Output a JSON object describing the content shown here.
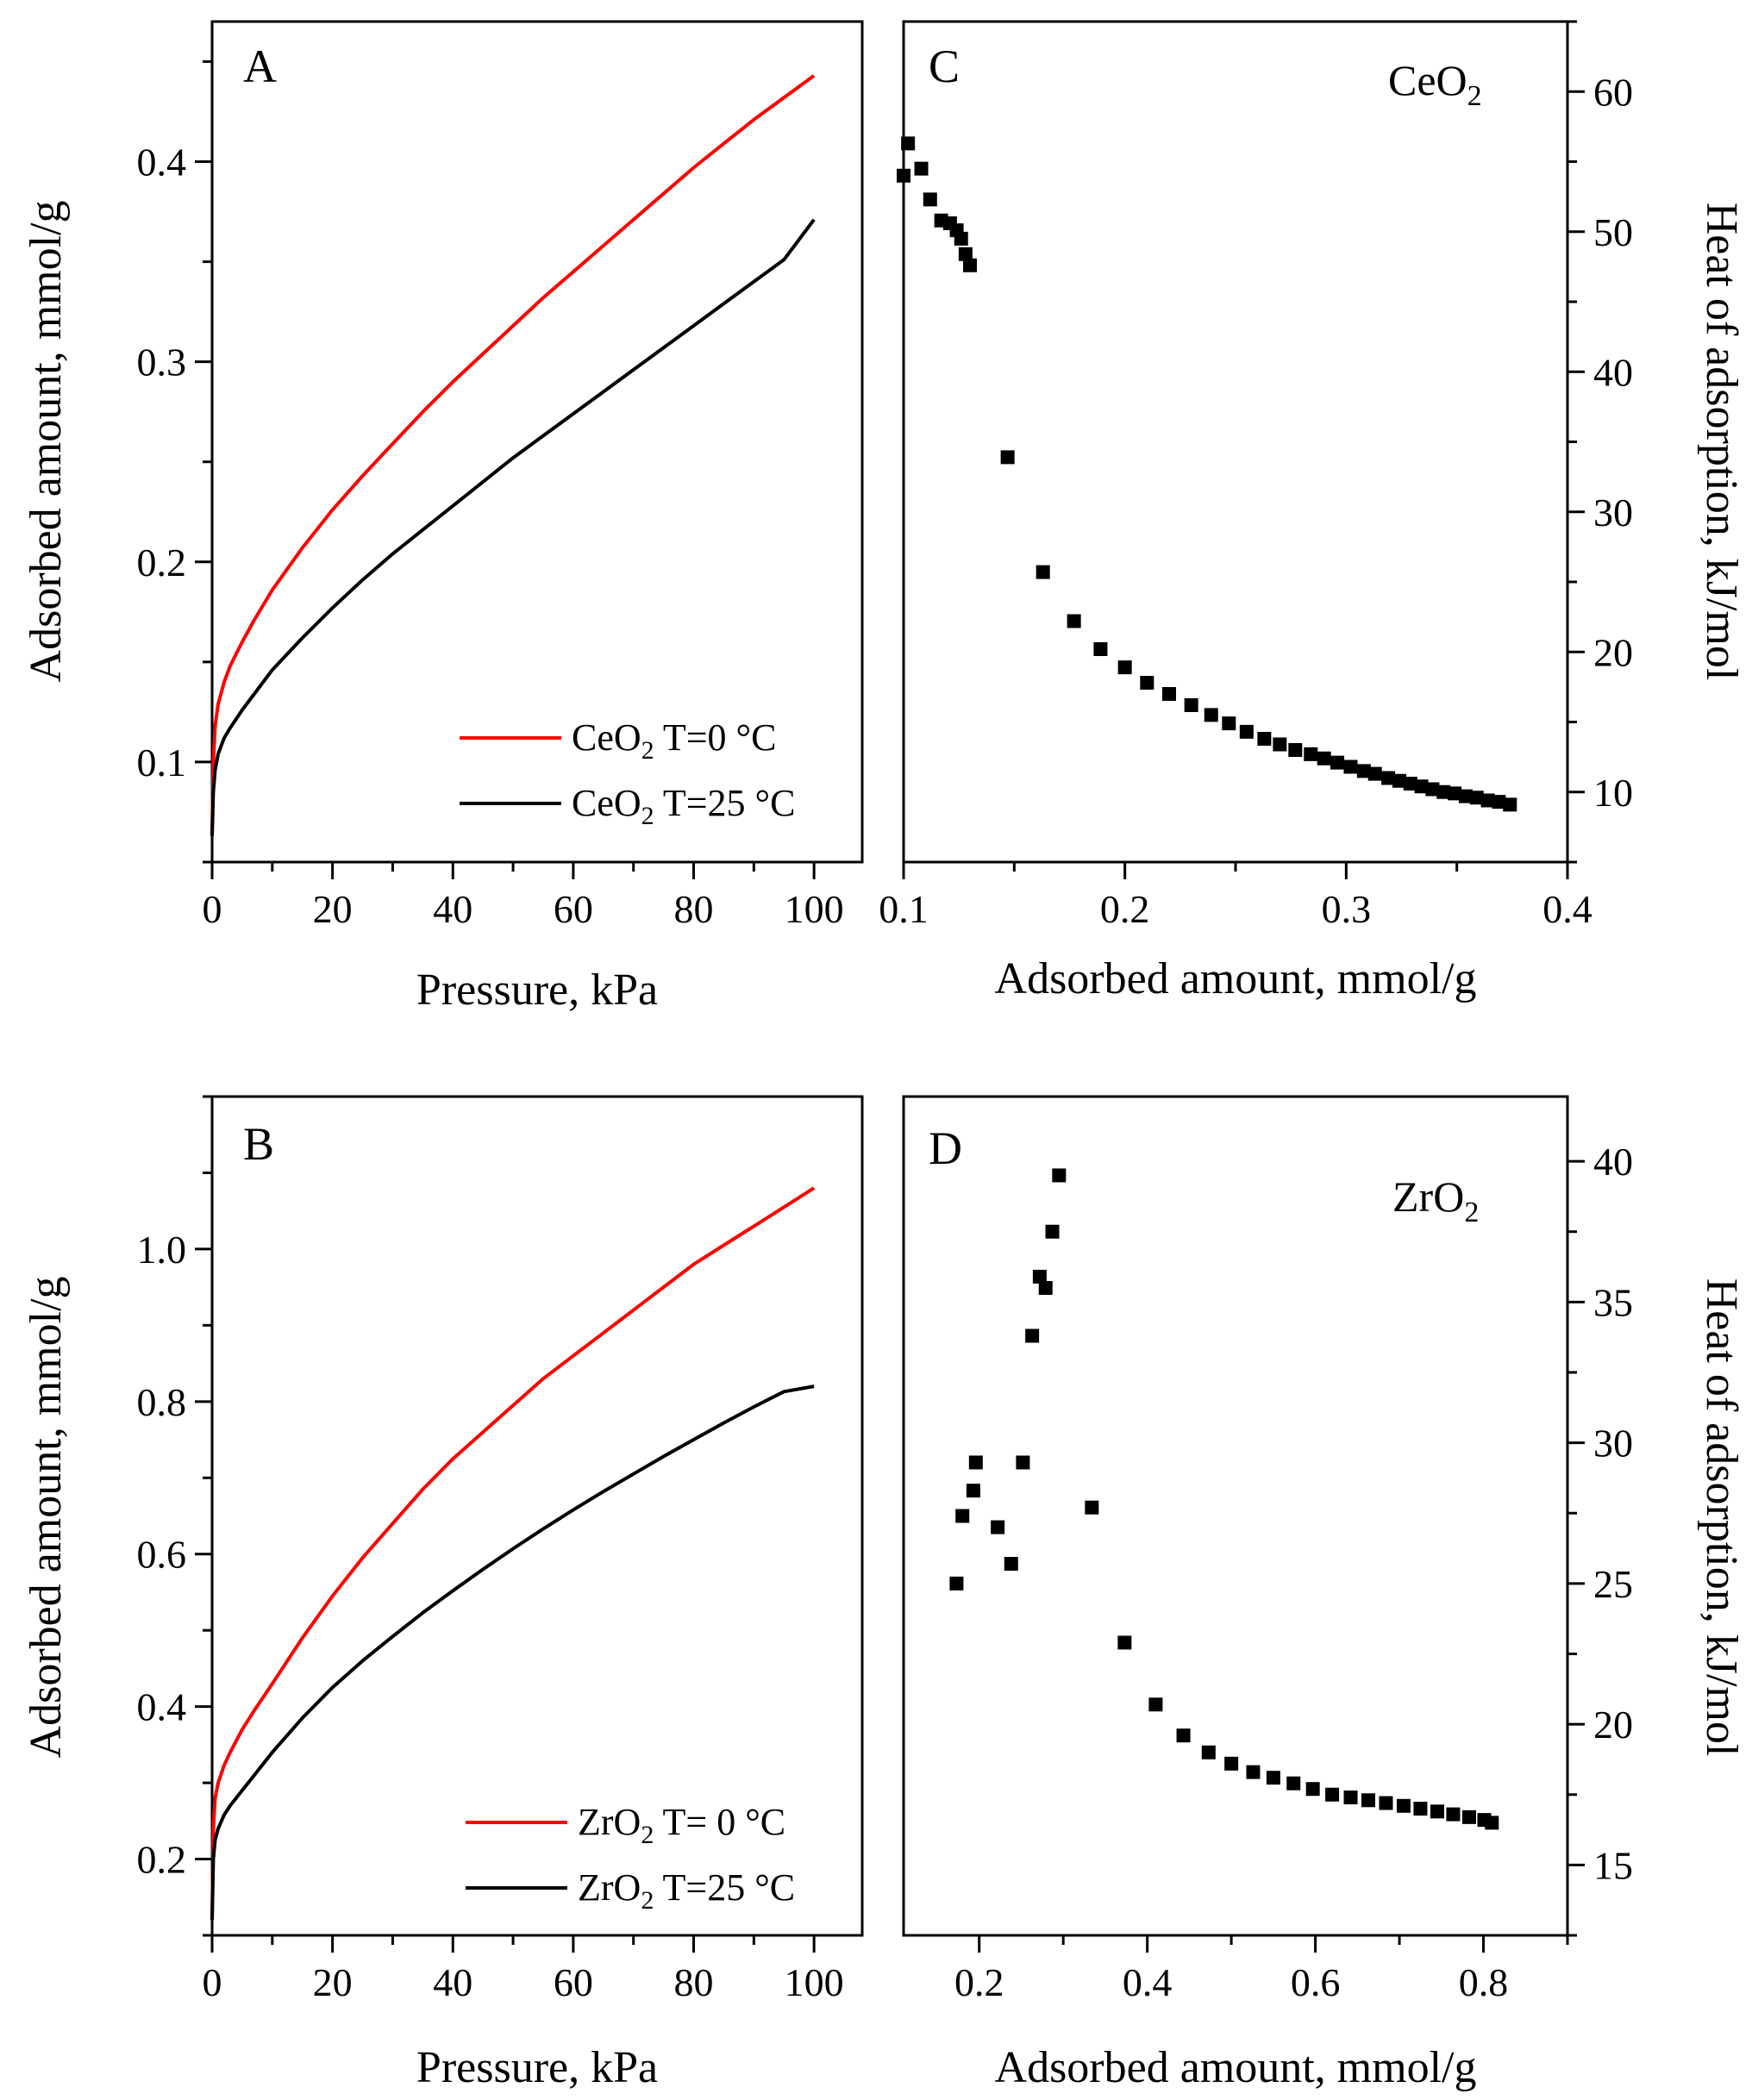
{
  "chart_data": [
    {
      "id": "A",
      "type": "line",
      "panel_label": "A",
      "xlabel": "Pressure, kPa",
      "ylabel": "Adsorbed amount, mmol/g",
      "xlim": [
        0,
        108
      ],
      "ylim": [
        0.05,
        0.47
      ],
      "x_ticks": [
        0,
        20,
        40,
        60,
        80,
        100
      ],
      "y_ticks": [
        0.1,
        0.2,
        0.3,
        0.4
      ],
      "x_tick_labels": [
        "0",
        "20",
        "40",
        "60",
        "80",
        "100"
      ],
      "y_tick_labels": [
        "0.1",
        "0.2",
        "0.3",
        "0.4"
      ],
      "legend_position": "bottom-right",
      "series": [
        {
          "name": "CeO2 T=0 °C",
          "legend_main": "CeO",
          "legend_sub": "2",
          "legend_rest": " T=0 °C",
          "color": "#ff0000",
          "x": [
            0,
            0.2,
            0.5,
            1,
            2,
            3,
            5,
            7,
            10,
            15,
            20,
            25,
            30,
            35,
            40,
            45,
            50,
            55,
            60,
            65,
            70,
            75,
            80,
            85,
            90,
            95,
            100
          ],
          "y": [
            0.065,
            0.1,
            0.118,
            0.129,
            0.14,
            0.148,
            0.16,
            0.171,
            0.186,
            0.207,
            0.226,
            0.243,
            0.259,
            0.275,
            0.29,
            0.304,
            0.318,
            0.332,
            0.345,
            0.358,
            0.371,
            0.384,
            0.397,
            0.409,
            0.421,
            0.432,
            0.443
          ]
        },
        {
          "name": "CeO2 T=25 °C",
          "legend_main": "CeO",
          "legend_sub": "2",
          "legend_rest": " T=25 °C",
          "color": "#000000",
          "x": [
            0,
            0.2,
            0.5,
            1,
            2,
            3,
            5,
            7,
            10,
            15,
            20,
            25,
            30,
            35,
            40,
            45,
            50,
            55,
            60,
            65,
            70,
            75,
            80,
            85,
            90,
            95,
            100
          ],
          "y": [
            0.063,
            0.085,
            0.096,
            0.104,
            0.112,
            0.117,
            0.126,
            0.134,
            0.146,
            0.162,
            0.177,
            0.191,
            0.204,
            0.216,
            0.228,
            0.24,
            0.252,
            0.263,
            0.274,
            0.285,
            0.296,
            0.307,
            0.318,
            0.329,
            0.34,
            0.351,
            0.371
          ]
        }
      ]
    },
    {
      "id": "B",
      "type": "line",
      "panel_label": "B",
      "xlabel": "Pressure, kPa",
      "ylabel": "Adsorbed amount, mmol/g",
      "xlim": [
        0,
        108
      ],
      "ylim": [
        0.1,
        1.2
      ],
      "x_ticks": [
        0,
        20,
        40,
        60,
        80,
        100
      ],
      "y_ticks": [
        0.2,
        0.4,
        0.6,
        0.8,
        1.0
      ],
      "x_tick_labels": [
        "0",
        "20",
        "40",
        "60",
        "80",
        "100"
      ],
      "y_tick_labels": [
        "0.2",
        "0.4",
        "0.6",
        "0.8",
        "1.0"
      ],
      "legend_position": "bottom-right",
      "series": [
        {
          "name": "ZrO2 T= 0 °C",
          "legend_main": "ZrO",
          "legend_sub": "2",
          "legend_rest": " T= 0 °C",
          "color": "#ff0000",
          "x": [
            0,
            0.2,
            0.5,
            1,
            2,
            3,
            5,
            7,
            10,
            15,
            20,
            25,
            30,
            35,
            40,
            45,
            50,
            55,
            60,
            65,
            70,
            75,
            80,
            85,
            90,
            95,
            100
          ],
          "y": [
            0.12,
            0.24,
            0.28,
            0.3,
            0.323,
            0.34,
            0.37,
            0.395,
            0.43,
            0.49,
            0.545,
            0.595,
            0.64,
            0.685,
            0.725,
            0.76,
            0.795,
            0.83,
            0.86,
            0.89,
            0.92,
            0.95,
            0.98,
            1.005,
            1.03,
            1.055,
            1.08
          ]
        },
        {
          "name": "ZrO2 T=25 °C",
          "legend_main": "ZrO",
          "legend_sub": "2",
          "legend_rest": " T=25 °C",
          "color": "#000000",
          "x": [
            0,
            0.2,
            0.5,
            1,
            2,
            3,
            5,
            7,
            10,
            15,
            20,
            25,
            30,
            35,
            40,
            45,
            50,
            55,
            60,
            65,
            70,
            75,
            80,
            85,
            90,
            95,
            100
          ],
          "y": [
            0.12,
            0.2,
            0.225,
            0.24,
            0.258,
            0.27,
            0.29,
            0.31,
            0.34,
            0.385,
            0.425,
            0.46,
            0.492,
            0.523,
            0.552,
            0.58,
            0.607,
            0.633,
            0.658,
            0.682,
            0.705,
            0.728,
            0.75,
            0.772,
            0.793,
            0.813,
            0.82
          ]
        }
      ]
    },
    {
      "id": "C",
      "type": "scatter",
      "panel_label": "C",
      "compound_main": "CeO",
      "compound_sub": "2",
      "xlabel": "Adsorbed amount, mmol/g",
      "ylabel": "Heat of adsorption, kJ/mol",
      "y_axis_side": "right",
      "xlim": [
        0.1,
        0.4
      ],
      "ylim": [
        5,
        65
      ],
      "x_ticks": [
        0.1,
        0.2,
        0.3,
        0.4
      ],
      "y_ticks": [
        10,
        20,
        30,
        40,
        50,
        60
      ],
      "x_tick_labels": [
        "0.1",
        "0.2",
        "0.3",
        "0.4"
      ],
      "y_tick_labels": [
        "10",
        "20",
        "30",
        "40",
        "50",
        "60"
      ],
      "series": [
        {
          "name": "CeO2",
          "color": "#000000",
          "x": [
            0.1,
            0.102,
            0.108,
            0.112,
            0.117,
            0.121,
            0.124,
            0.126,
            0.128,
            0.13,
            0.147,
            0.163,
            0.177,
            0.189,
            0.2,
            0.21,
            0.22,
            0.23,
            0.239,
            0.247,
            0.255,
            0.263,
            0.27,
            0.277,
            0.284,
            0.29,
            0.296,
            0.302,
            0.308,
            0.313,
            0.319,
            0.324,
            0.329,
            0.334,
            0.339,
            0.344,
            0.349,
            0.354,
            0.359,
            0.364,
            0.369,
            0.374
          ],
          "y": [
            54,
            56.3,
            54.5,
            52.3,
            50.8,
            50.6,
            50.1,
            49.5,
            48.4,
            47.6,
            33.9,
            25.7,
            22.2,
            20.2,
            18.9,
            17.8,
            17.0,
            16.2,
            15.5,
            14.9,
            14.3,
            13.8,
            13.4,
            13.0,
            12.7,
            12.4,
            12.1,
            11.8,
            11.5,
            11.3,
            11.0,
            10.8,
            10.6,
            10.4,
            10.2,
            10.0,
            9.9,
            9.7,
            9.6,
            9.4,
            9.3,
            9.1
          ]
        }
      ]
    },
    {
      "id": "D",
      "type": "scatter",
      "panel_label": "D",
      "compound_main": "ZrO",
      "compound_sub": "2",
      "xlabel": "Adsorbed amount, mmol/g",
      "ylabel": "Heat of adsorption, kJ/mol",
      "y_axis_side": "right",
      "xlim": [
        0.11,
        0.9
      ],
      "ylim": [
        12.5,
        42.3
      ],
      "x_ticks": [
        0.2,
        0.4,
        0.6,
        0.8
      ],
      "y_ticks": [
        15,
        20,
        25,
        30,
        35,
        40
      ],
      "x_tick_labels": [
        "0.2",
        "0.4",
        "0.6",
        "0.8"
      ],
      "y_tick_labels": [
        "15",
        "20",
        "25",
        "30",
        "35",
        "40"
      ],
      "series": [
        {
          "name": "ZrO2",
          "color": "#000000",
          "x": [
            0.173,
            0.18,
            0.193,
            0.196,
            0.222,
            0.238,
            0.252,
            0.263,
            0.272,
            0.279,
            0.287,
            0.295,
            0.334,
            0.373,
            0.41,
            0.443,
            0.473,
            0.5,
            0.526,
            0.55,
            0.574,
            0.597,
            0.62,
            0.642,
            0.663,
            0.684,
            0.705,
            0.725,
            0.745,
            0.764,
            0.783,
            0.801,
            0.81
          ],
          "y": [
            25.0,
            27.4,
            28.3,
            29.3,
            27.0,
            25.7,
            29.3,
            33.8,
            35.9,
            35.5,
            37.5,
            39.5,
            27.7,
            22.9,
            20.7,
            19.6,
            19.0,
            18.6,
            18.3,
            18.1,
            17.9,
            17.7,
            17.5,
            17.4,
            17.3,
            17.2,
            17.1,
            17.0,
            16.9,
            16.8,
            16.7,
            16.6,
            16.5
          ]
        }
      ]
    }
  ]
}
